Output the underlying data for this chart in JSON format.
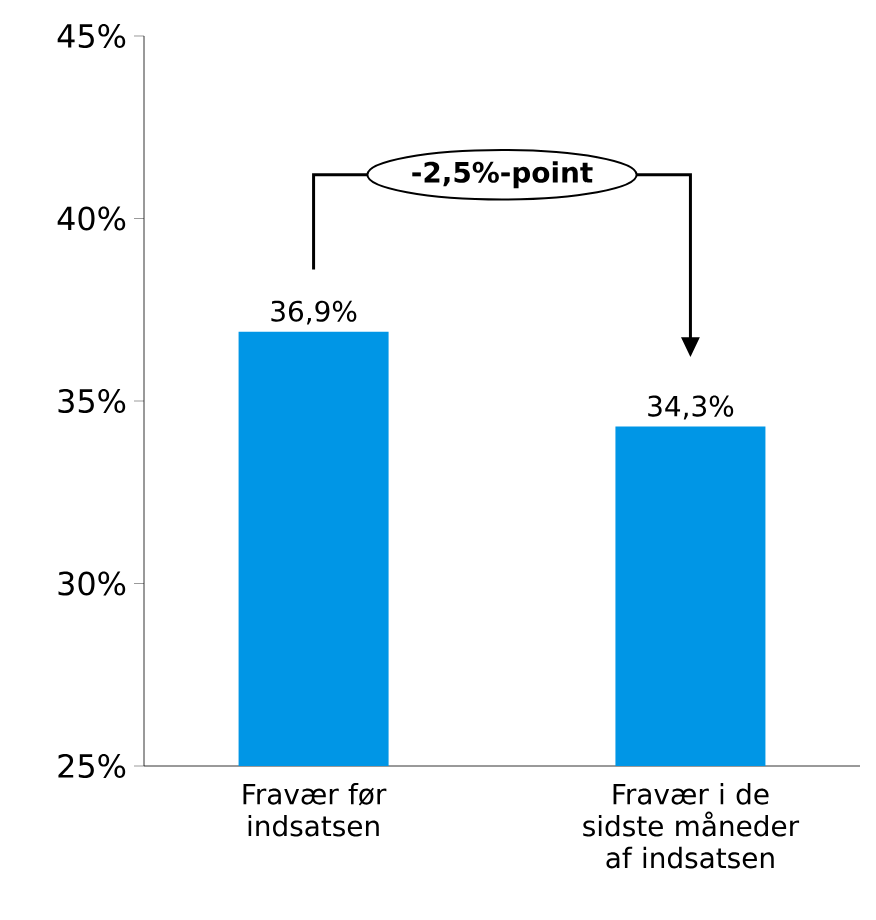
{
  "chart_data": {
    "type": "bar",
    "categories": [
      "Fravær før indsatsen",
      "Fravær i de sidste måneder af indsatsen"
    ],
    "values": [
      36.9,
      34.3
    ],
    "value_labels": [
      "36,9%",
      "34,3%"
    ],
    "color": "#0096e6",
    "ylim": [
      25,
      45
    ],
    "yticks": [
      {
        "value": 25,
        "label": "25%"
      },
      {
        "value": 30,
        "label": "30%"
      },
      {
        "value": 35,
        "label": "35%"
      },
      {
        "value": 40,
        "label": "40%"
      },
      {
        "value": 45,
        "label": "45%"
      }
    ],
    "annotations": [
      "-2,5%-point"
    ],
    "grid": false
  }
}
